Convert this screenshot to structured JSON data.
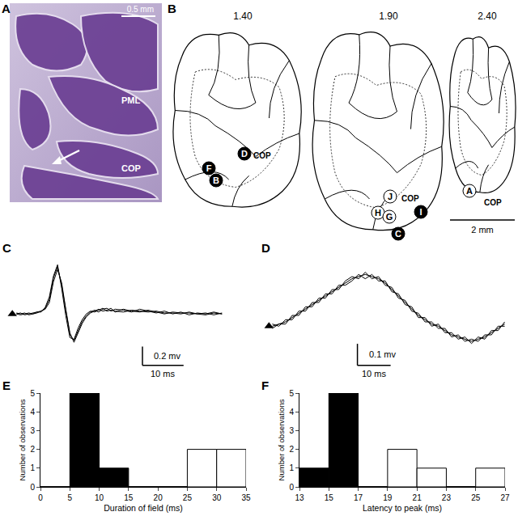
{
  "chart_data": [
    {
      "type": "line",
      "title": "C",
      "tick_labels": false,
      "stimulus": 0,
      "xlim": [
        -3,
        60
      ],
      "ylim": [
        -0.7,
        0.6
      ],
      "scale_bars": [
        {
          "axis": "x",
          "value": 10,
          "label": "10 ms"
        },
        {
          "axis": "y",
          "value": 0.2,
          "label": "0.2 mv"
        }
      ],
      "x": [
        1,
        2,
        3,
        4,
        5,
        6,
        7,
        8,
        9,
        10,
        11,
        12,
        13,
        14,
        15,
        16,
        17,
        18,
        19,
        20,
        21,
        22,
        23,
        24,
        25,
        27,
        29,
        31,
        33,
        35,
        37,
        39,
        41,
        43,
        45,
        47,
        49,
        51
      ],
      "series": [
        {
          "color": "#000000",
          "values": [
            0,
            0.01,
            -0.01,
            0,
            0.01,
            0.02,
            0.03,
            0.06,
            0.15,
            0.38,
            0.5,
            0.3,
            0.02,
            -0.22,
            -0.28,
            -0.18,
            -0.08,
            -0.02,
            0.02,
            0.04,
            0.02,
            0.05,
            0.06,
            0.03,
            0.05,
            0.04,
            0.02,
            0.05,
            0.03,
            0.01,
            0.03,
            0.0,
            0.02,
            -0.01,
            0.01,
            0.0,
            0.02,
            0.0
          ]
        },
        {
          "color": "#000000",
          "values": [
            0.01,
            0,
            0.01,
            -0.01,
            0,
            0.01,
            0.03,
            0.05,
            0.12,
            0.34,
            0.47,
            0.33,
            0.05,
            -0.2,
            -0.3,
            -0.2,
            -0.1,
            -0.03,
            0.01,
            0.03,
            0.05,
            0.03,
            0.04,
            0.06,
            0.02,
            0.05,
            0.03,
            0.02,
            0.04,
            0.02,
            0.0,
            0.02,
            0.01,
            0.01,
            0.0,
            0.01,
            -0.01,
            0.01
          ]
        },
        {
          "color": "#000000",
          "values": [
            0,
            -0.01,
            0,
            0.01,
            0,
            0.02,
            0.02,
            0.07,
            0.18,
            0.4,
            0.52,
            0.27,
            -0.02,
            -0.25,
            -0.27,
            -0.15,
            -0.06,
            0,
            0.03,
            0.02,
            0.04,
            0.06,
            0.03,
            0.04,
            0.03,
            0.02,
            0.04,
            0.03,
            0.02,
            0.03,
            0.01,
            0.01,
            0.0,
            0.02,
            0.0,
            -0.01,
            0.01,
            0.0
          ]
        }
      ]
    },
    {
      "type": "line",
      "title": "D",
      "tick_labels": false,
      "stimulus": 0,
      "xlim": [
        -3,
        75
      ],
      "ylim": [
        -0.25,
        0.32
      ],
      "scale_bars": [
        {
          "axis": "x",
          "value": 10,
          "label": "10 ms"
        },
        {
          "axis": "y",
          "value": 0.1,
          "label": "0.1 mv"
        }
      ],
      "x": [
        1,
        3,
        5,
        7,
        9,
        11,
        13,
        15,
        17,
        19,
        21,
        23,
        25,
        27,
        29,
        31,
        33,
        35,
        37,
        39,
        41,
        43,
        45,
        47,
        49,
        51,
        53,
        55,
        57,
        59,
        61,
        63,
        65,
        67,
        69,
        71
      ],
      "series": [
        {
          "color": "#000000",
          "values": [
            0,
            0.01,
            0.02,
            0.04,
            0.06,
            0.08,
            0.1,
            0.12,
            0.14,
            0.16,
            0.18,
            0.2,
            0.22,
            0.23,
            0.24,
            0.23,
            0.22,
            0.2,
            0.17,
            0.14,
            0.11,
            0.08,
            0.05,
            0.03,
            0.01,
            0,
            -0.02,
            -0.04,
            -0.05,
            -0.06,
            -0.07,
            -0.06,
            -0.05,
            -0.03,
            -0.01,
            0.01
          ]
        },
        {
          "color": "#000000",
          "values": [
            0.01,
            0,
            0.03,
            0.03,
            0.07,
            0.07,
            0.11,
            0.11,
            0.15,
            0.15,
            0.19,
            0.19,
            0.21,
            0.24,
            0.22,
            0.24,
            0.21,
            0.21,
            0.16,
            0.15,
            0.1,
            0.09,
            0.04,
            0.04,
            0,
            0.01,
            -0.03,
            -0.03,
            -0.06,
            -0.05,
            -0.08,
            -0.05,
            -0.06,
            -0.02,
            -0.02,
            0.02
          ]
        },
        {
          "color": "#000000",
          "values": [
            -0.01,
            0.01,
            0.01,
            0.05,
            0.05,
            0.09,
            0.09,
            0.13,
            0.13,
            0.17,
            0.17,
            0.21,
            0.23,
            0.22,
            0.25,
            0.22,
            0.23,
            0.19,
            0.18,
            0.13,
            0.12,
            0.07,
            0.06,
            0.02,
            0.02,
            -0.01,
            -0.01,
            -0.05,
            -0.04,
            -0.07,
            -0.06,
            -0.07,
            -0.04,
            -0.04,
            0,
            0
          ]
        }
      ]
    },
    {
      "type": "histogram",
      "title": "E",
      "x_label": "Duration of field (ms)",
      "y_label": "Number of observations",
      "bins": [
        0,
        5,
        10,
        15,
        20,
        25,
        30,
        35
      ],
      "series": [
        {
          "color": "#000000",
          "values": [
            0,
            5,
            1,
            0,
            0,
            0,
            0
          ]
        },
        {
          "color": "#ffffff",
          "values": [
            0,
            0,
            0,
            0,
            0,
            2,
            2
          ]
        }
      ],
      "xlim": [
        0,
        35
      ],
      "xticks": [
        0,
        5,
        10,
        15,
        20,
        25,
        30,
        35
      ],
      "ylim": [
        0,
        5
      ],
      "yticks": [
        0,
        1,
        2,
        3,
        4,
        5
      ],
      "grid": false
    },
    {
      "type": "histogram",
      "title": "F",
      "x_label": "Latency to peak (ms)",
      "y_label": "Number of observations",
      "bins": [
        13,
        15,
        17,
        19,
        21,
        23,
        25,
        27
      ],
      "series": [
        {
          "color": "#000000",
          "values": [
            1,
            5,
            0,
            0,
            0,
            0,
            0
          ]
        },
        {
          "color": "#ffffff",
          "values": [
            0,
            0,
            0,
            2,
            1,
            0,
            1
          ]
        }
      ],
      "xlim": [
        13,
        27
      ],
      "xticks": [
        13,
        15,
        17,
        19,
        21,
        23,
        25,
        27
      ],
      "ylim": [
        0,
        5
      ],
      "yticks": [
        0,
        1,
        2,
        3,
        4,
        5
      ],
      "grid": false
    }
  ],
  "diagram": {
    "panel_A": {
      "label": "A",
      "scale_bar": "0.5 mm",
      "regions": [
        "PML",
        "COP"
      ]
    },
    "panel_B": {
      "label": "B",
      "scale_bar": "2 mm",
      "sections": [
        {
          "label": "1.40",
          "region": "COP",
          "sites": [
            {
              "id": "D",
              "fill": "black"
            },
            {
              "id": "F",
              "fill": "black"
            },
            {
              "id": "B",
              "fill": "black"
            }
          ]
        },
        {
          "label": "1.90",
          "region": "COP",
          "sites": [
            {
              "id": "J",
              "fill": "white"
            },
            {
              "id": "H",
              "fill": "white"
            },
            {
              "id": "G",
              "fill": "white"
            },
            {
              "id": "I",
              "fill": "black"
            },
            {
              "id": "C",
              "fill": "black"
            }
          ]
        },
        {
          "label": "2.40",
          "region": "COP",
          "sites": [
            {
              "id": "A",
              "fill": "white"
            }
          ]
        }
      ]
    }
  }
}
